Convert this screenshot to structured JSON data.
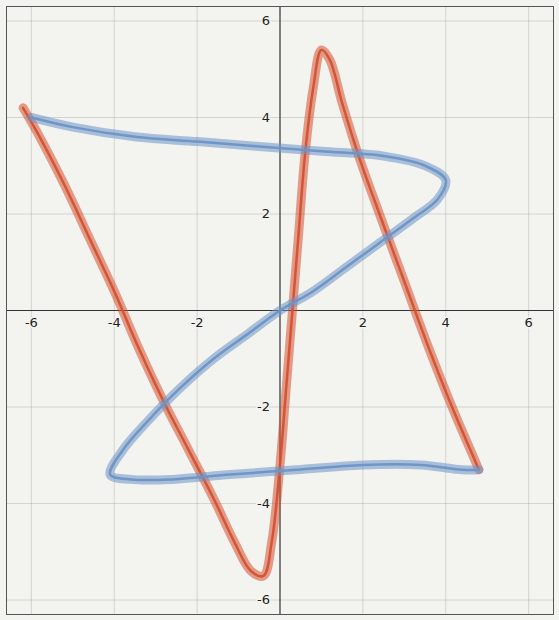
{
  "chart_data": {
    "type": "line",
    "xlim": [
      -6.6,
      6.6
    ],
    "ylim": [
      -6.3,
      6.3
    ],
    "xticks": [
      -6,
      -4,
      -2,
      2,
      4,
      6
    ],
    "yticks": [
      -6,
      -4,
      -2,
      2,
      4,
      6
    ],
    "grid": true,
    "series": [
      {
        "color": "#d4502f",
        "x": [
          -6.2,
          -5.8,
          -5.2,
          -4.6,
          -4.0,
          -3.4,
          -2.8,
          -2.2,
          -1.6,
          -1.1,
          -0.7,
          -0.4,
          -0.2,
          0.0,
          0.15,
          0.3,
          0.45,
          0.6,
          0.8,
          1.0,
          1.2,
          1.5,
          1.9,
          2.4,
          3.0,
          3.6,
          4.2,
          4.6,
          4.8
        ],
        "y": [
          4.2,
          3.6,
          2.6,
          1.5,
          0.4,
          -0.8,
          -1.9,
          -2.9,
          -3.9,
          -4.8,
          -5.4,
          -5.5,
          -4.8,
          -3.2,
          -1.6,
          0.0,
          1.6,
          3.2,
          4.6,
          5.4,
          5.2,
          4.3,
          3.2,
          2.0,
          0.6,
          -0.8,
          -2.1,
          -2.9,
          -3.3
        ]
      },
      {
        "color": "#6b94c6",
        "x": [
          -6.0,
          -5.0,
          -3.5,
          -2.0,
          -0.5,
          1.0,
          2.5,
          3.5,
          4.0,
          3.8,
          3.2,
          2.4,
          1.6,
          0.8,
          0.0,
          -0.8,
          -1.6,
          -2.4,
          -3.2,
          -3.8,
          -4.1,
          -3.6,
          -2.6,
          -1.2,
          0.4,
          2.0,
          3.4,
          4.4,
          4.8
        ],
        "y": [
          4.0,
          3.8,
          3.6,
          3.5,
          3.4,
          3.3,
          3.2,
          3.0,
          2.7,
          2.3,
          1.9,
          1.4,
          0.9,
          0.4,
          0.0,
          -0.5,
          -1.0,
          -1.6,
          -2.3,
          -2.9,
          -3.4,
          -3.5,
          -3.5,
          -3.4,
          -3.3,
          -3.2,
          -3.2,
          -3.3,
          -3.3
        ]
      }
    ]
  }
}
